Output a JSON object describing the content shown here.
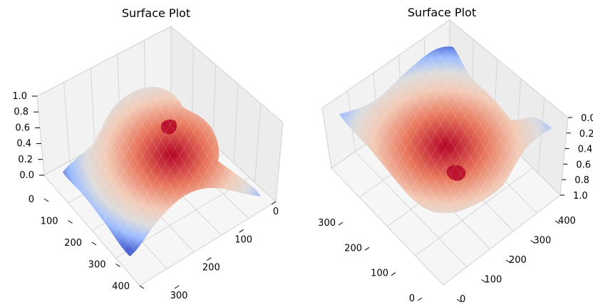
{
  "chart_data": [
    {
      "type": "surface",
      "title": "Surface Plot",
      "colormap": "coolwarm",
      "view": "elevated, tilted toward the viewer",
      "z_ticks": [
        "0.0",
        "0.2",
        "0.4",
        "0.6",
        "0.8",
        "1.0"
      ],
      "x_ticks": [
        "0",
        "100",
        "200",
        "300",
        "400"
      ],
      "y_ticks": [
        "0",
        "100",
        "200",
        "300"
      ],
      "zlim": [
        0,
        1
      ],
      "x_range": [
        0,
        420
      ],
      "y_range": [
        0,
        420
      ],
      "peak_z": 1.0
    },
    {
      "type": "surface",
      "title": "Surface Plot",
      "colormap": "coolwarm",
      "view": "viewed from below, z axis inverted",
      "z_ticks": [
        "0.0",
        "0.2",
        "0.4",
        "0.6",
        "0.8",
        "1.0"
      ],
      "x_ticks": [
        "0",
        "100",
        "200",
        "300",
        "400"
      ],
      "y_ticks": [
        "0",
        "100",
        "200",
        "300"
      ],
      "zlim": [
        1,
        0
      ],
      "x_range": [
        0,
        420
      ],
      "y_range": [
        0,
        420
      ],
      "peak_z": 1.0
    }
  ]
}
